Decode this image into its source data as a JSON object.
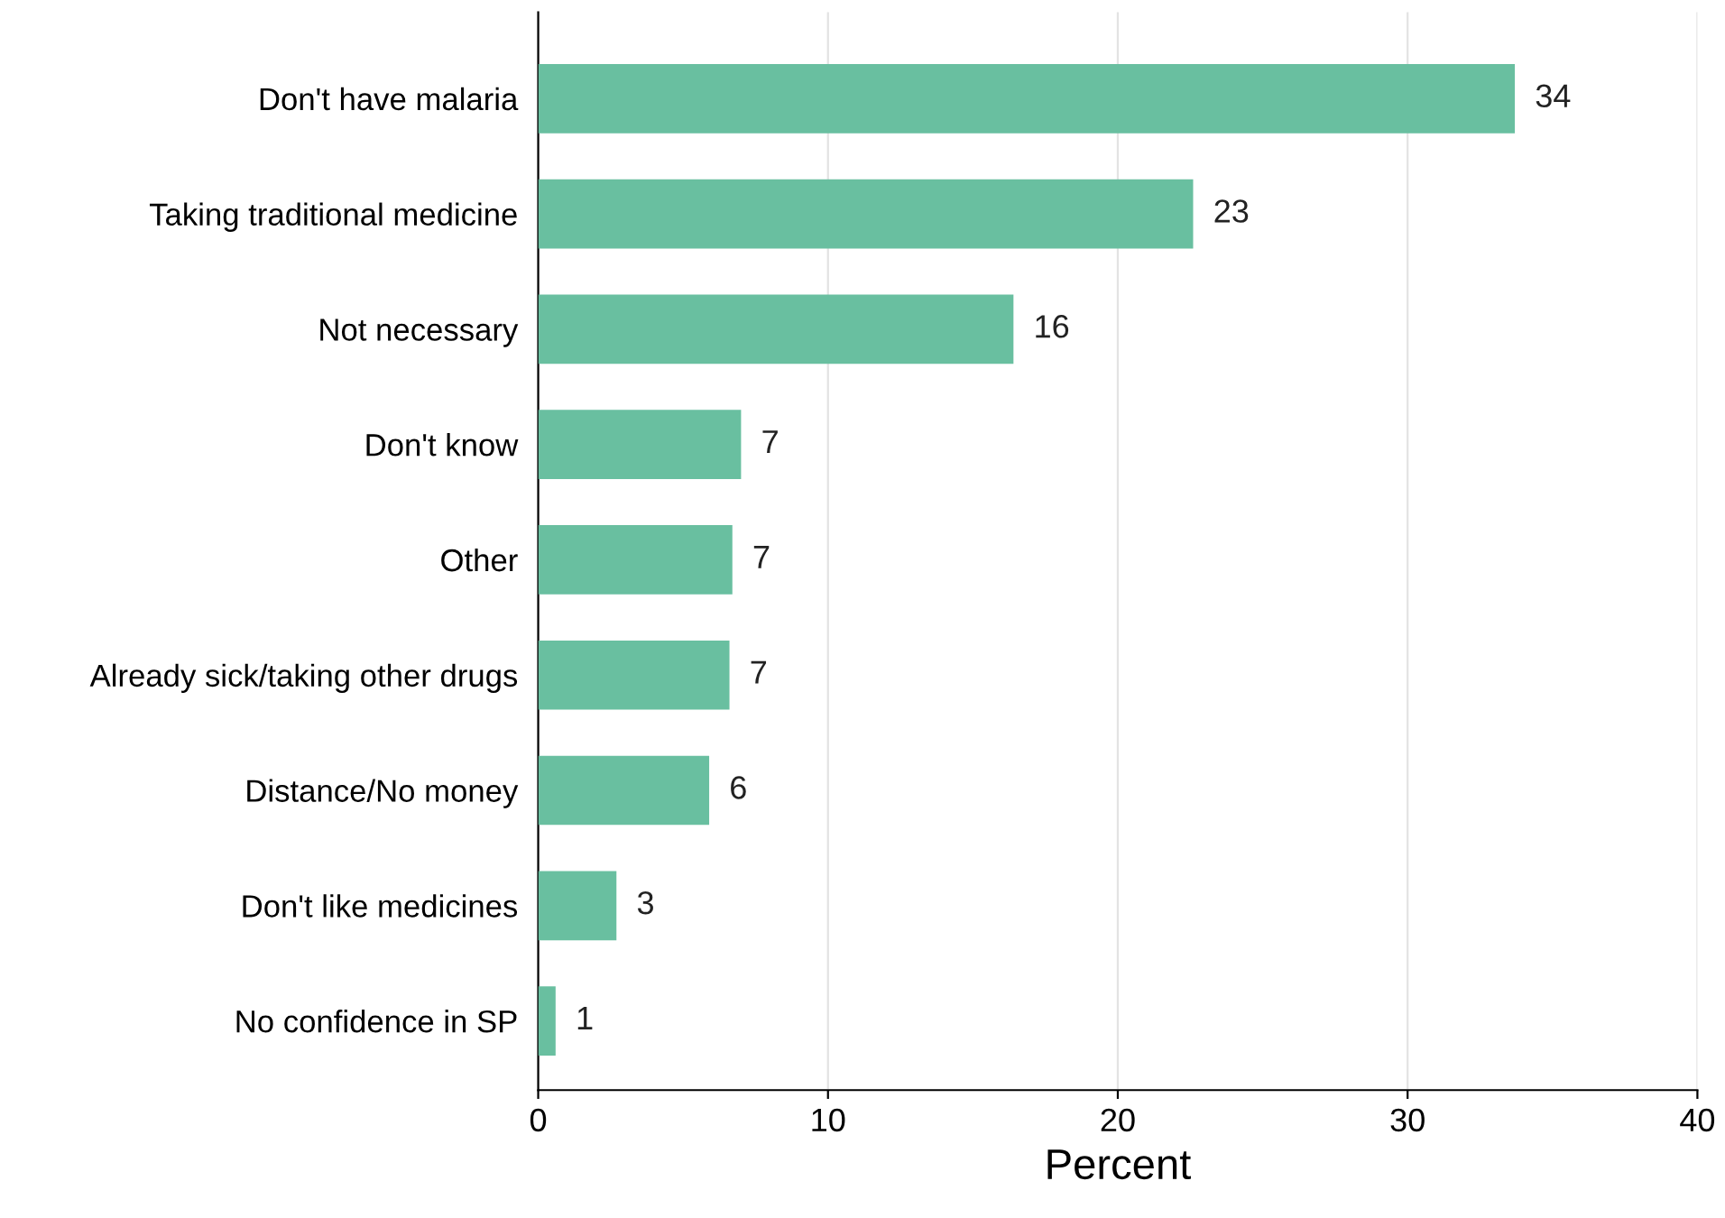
{
  "chart_data": {
    "type": "bar",
    "orientation": "horizontal",
    "xlabel": "Percent",
    "categories": [
      "Don't have malaria",
      "Taking traditional medicine",
      "Not necessary",
      "Don't know",
      "Other",
      "Already sick/taking other drugs",
      "Distance/No money",
      "Don't like medicines",
      "No confidence in SP"
    ],
    "values": [
      33.7,
      22.6,
      16.4,
      7.0,
      6.7,
      6.6,
      5.9,
      2.7,
      0.6
    ],
    "value_labels": [
      "34",
      "23",
      "16",
      "7",
      "7",
      "7",
      "6",
      "3",
      "1"
    ],
    "color": "#69bfa0",
    "xlim": [
      0,
      40
    ],
    "xticks": [
      0,
      10,
      20,
      30,
      40
    ],
    "grid": "x"
  }
}
